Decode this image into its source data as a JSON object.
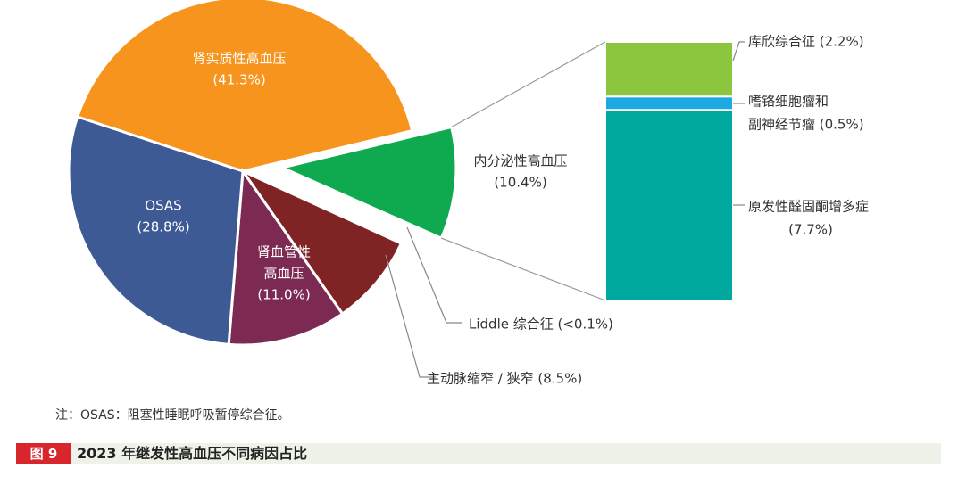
{
  "chart_data": {
    "type": "pie",
    "slices": [
      {
        "label": "肾实质性高血压",
        "label_lines": [
          "肾实质性高血压"
        ],
        "display": "(41.3%)",
        "value": 41.3,
        "color": "#f7941d"
      },
      {
        "label": "内分泌性高血压",
        "label_lines": [
          "内分泌性高血压"
        ],
        "display": "(10.4%)",
        "value": 10.4,
        "color": "#0faa4f"
      },
      {
        "label": "Liddle 综合征",
        "label_lines": [
          "Liddle 综合征 (<0.1%)"
        ],
        "display": "",
        "value": 0.1,
        "color": "#7a2a2a"
      },
      {
        "label": "主动脉缩窄 / 狭窄",
        "label_lines": [
          "主动脉缩窄 / 狭窄 (8.5%)"
        ],
        "display": "",
        "value": 8.5,
        "color": "#7f2325"
      },
      {
        "label": "肾血管性高血压",
        "label_lines": [
          "肾血管性",
          "高血压"
        ],
        "display": "(11.0%)",
        "value": 11.0,
        "color": "#7d2a52"
      },
      {
        "label": "OSAS",
        "label_lines": [
          "OSAS"
        ],
        "display": "(28.8%)",
        "value": 28.8,
        "color": "#3d5a94"
      }
    ],
    "breakdown": {
      "of": "内分泌性高血压",
      "segments": [
        {
          "label_lines": [
            "库欣综合征 (2.2%)"
          ],
          "value": 2.2,
          "color": "#8cc63f"
        },
        {
          "label_lines": [
            "嗜铬细胞瘤和",
            "副神经节瘤 (0.5%)"
          ],
          "value": 0.5,
          "color": "#1ea8e0"
        },
        {
          "label_lines": [
            "原发性醛固酮增多症",
            "(7.7%)"
          ],
          "value": 7.7,
          "color": "#00a99d"
        }
      ]
    }
  },
  "note": "注：OSAS：阻塞性睡眠呼吸暂停综合征。",
  "caption": {
    "tag": "图 9",
    "title": "2023 年继发性高血压不同病因占比"
  }
}
